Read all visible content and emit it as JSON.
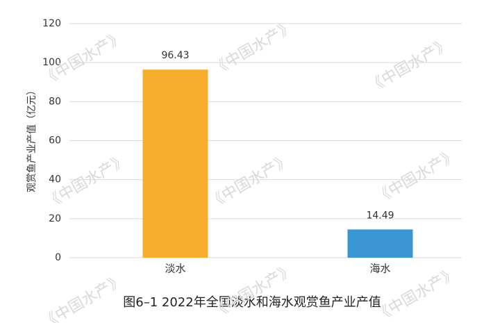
{
  "chart_data": {
    "type": "bar",
    "title": "图6–1 2022年全国淡水和海水观赏鱼产业产值",
    "y_label": "观赏鱼产业产值（亿元）",
    "watermark": "《中国水产》",
    "categories": [
      "淡水",
      "海水"
    ],
    "values": [
      96.43,
      14.49
    ],
    "colors": [
      "#f7ae2f",
      "#3a95d3"
    ],
    "ylim": [
      0,
      120
    ],
    "yticks": [
      0,
      20,
      40,
      60,
      80,
      100,
      120
    ],
    "grid": true,
    "value_labels_shown": true
  }
}
